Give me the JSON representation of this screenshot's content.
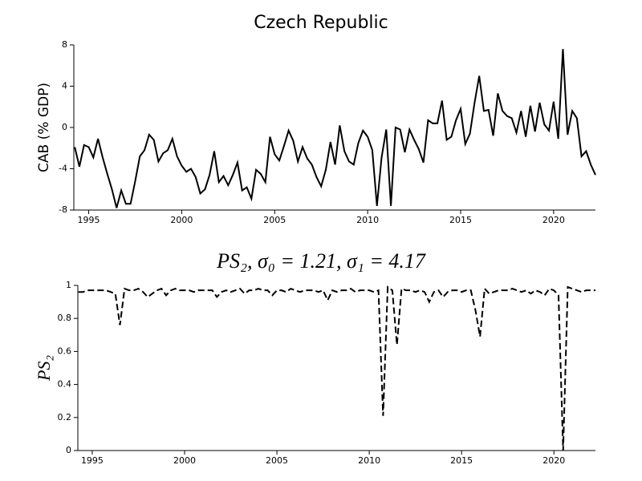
{
  "chart_data": [
    {
      "type": "line",
      "title": "Czech Republic",
      "ylabel": "CAB (% GDP)",
      "xlim": [
        1994.2,
        2022.25
      ],
      "xticks": [
        1995,
        2000,
        2005,
        2010,
        2015,
        2020
      ],
      "ylim": [
        -8,
        8
      ],
      "yticks": [
        -8,
        -4,
        0,
        4,
        8
      ],
      "line_style": "solid",
      "x": [
        1994.25,
        1994.5,
        1994.75,
        1995,
        1995.25,
        1995.5,
        1995.75,
        1996,
        1996.25,
        1996.5,
        1996.75,
        1997,
        1997.25,
        1997.5,
        1997.75,
        1998,
        1998.25,
        1998.5,
        1998.75,
        1999,
        1999.25,
        1999.5,
        1999.75,
        2000,
        2000.25,
        2000.5,
        2000.75,
        2001,
        2001.25,
        2001.5,
        2001.75,
        2002,
        2002.25,
        2002.5,
        2002.75,
        2003,
        2003.25,
        2003.5,
        2003.75,
        2004,
        2004.25,
        2004.5,
        2004.75,
        2005,
        2005.25,
        2005.5,
        2005.75,
        2006,
        2006.25,
        2006.5,
        2006.75,
        2007,
        2007.25,
        2007.5,
        2007.75,
        2008,
        2008.25,
        2008.5,
        2008.75,
        2009,
        2009.25,
        2009.5,
        2009.75,
        2010,
        2010.25,
        2010.5,
        2010.75,
        2011,
        2011.25,
        2011.5,
        2011.75,
        2012,
        2012.25,
        2012.5,
        2012.75,
        2013,
        2013.25,
        2013.5,
        2013.75,
        2014,
        2014.25,
        2014.5,
        2014.75,
        2015,
        2015.25,
        2015.5,
        2015.75,
        2016,
        2016.25,
        2016.5,
        2016.75,
        2017,
        2017.25,
        2017.5,
        2017.75,
        2018,
        2018.25,
        2018.5,
        2018.75,
        2019,
        2019.25,
        2019.5,
        2019.75,
        2020,
        2020.25,
        2020.5,
        2020.75,
        2021,
        2021.25,
        2021.5,
        2021.75,
        2022,
        2022.25
      ],
      "series": [
        {
          "color": "#000000",
          "values": [
            -1.9,
            -3.8,
            -1.7,
            -1.9,
            -2.9,
            -1.1,
            -2.9,
            -4.5,
            -6.0,
            -7.8,
            -6.1,
            -7.4,
            -7.4,
            -5.2,
            -2.8,
            -2.2,
            -0.7,
            -1.2,
            -3.3,
            -2.5,
            -2.2,
            -1.1,
            -2.8,
            -3.7,
            -4.3,
            -4.0,
            -4.8,
            -6.4,
            -6.0,
            -4.6,
            -2.3,
            -5.3,
            -4.7,
            -5.6,
            -4.6,
            -3.4,
            -6.1,
            -5.8,
            -6.9,
            -4.1,
            -4.5,
            -5.3,
            -0.9,
            -2.6,
            -3.2,
            -1.8,
            -0.3,
            -1.3,
            -3.3,
            -1.9,
            -3.0,
            -3.6,
            -4.8,
            -5.7,
            -4.1,
            -1.4,
            -3.6,
            0.2,
            -2.3,
            -3.3,
            -3.6,
            -1.5,
            -0.3,
            -0.9,
            -2.2,
            -7.6,
            -2.9,
            -0.2,
            -7.6,
            0,
            -0.2,
            -2.4,
            -0.2,
            -1.2,
            -2.1,
            -3.4,
            0.7,
            0.4,
            0.4,
            2.6,
            -1.2,
            -0.9,
            0.7,
            1.8,
            -1.6,
            -0.6,
            2.4,
            5.0,
            1.6,
            1.7,
            -0.8,
            3.3,
            1.6,
            1.1,
            0.9,
            -0.5,
            1.6,
            -0.9,
            2.1,
            -0.4,
            2.4,
            0.3,
            -0.3,
            2.5,
            -1.1,
            7.6,
            -0.7,
            1.6,
            0.9,
            -2.8,
            -2.3,
            -3.6,
            -4.6
          ]
        }
      ]
    },
    {
      "type": "line",
      "title": "PS₂, σ₀ = 1.21, σ₁ = 4.17",
      "ylabel": "PS₂",
      "xlim": [
        1994.22,
        2022.25
      ],
      "xticks": [
        1995,
        2000,
        2005,
        2010,
        2015,
        2020
      ],
      "ylim": [
        0,
        1
      ],
      "yticks": [
        0,
        0.2,
        0.4,
        0.6,
        0.8,
        1
      ],
      "line_style": "dashed",
      "x": [
        1994.25,
        1994.5,
        1994.75,
        1995,
        1995.25,
        1995.5,
        1995.75,
        1996,
        1996.25,
        1996.5,
        1996.75,
        1997,
        1997.25,
        1997.5,
        1997.75,
        1998,
        1998.25,
        1998.5,
        1998.75,
        1999,
        1999.25,
        1999.5,
        1999.75,
        2000,
        2000.25,
        2000.5,
        2000.75,
        2001,
        2001.25,
        2001.5,
        2001.75,
        2002,
        2002.25,
        2002.5,
        2002.75,
        2003,
        2003.25,
        2003.5,
        2003.75,
        2004,
        2004.25,
        2004.5,
        2004.75,
        2005,
        2005.25,
        2005.5,
        2005.75,
        2006,
        2006.25,
        2006.5,
        2006.75,
        2007,
        2007.25,
        2007.5,
        2007.75,
        2008,
        2008.25,
        2008.5,
        2008.75,
        2009,
        2009.25,
        2009.5,
        2009.75,
        2010,
        2010.25,
        2010.5,
        2010.75,
        2011,
        2011.25,
        2011.5,
        2011.75,
        2012,
        2012.25,
        2012.5,
        2012.75,
        2013,
        2013.25,
        2013.5,
        2013.75,
        2014,
        2014.25,
        2014.5,
        2014.75,
        2015,
        2015.25,
        2015.5,
        2015.75,
        2016,
        2016.25,
        2016.5,
        2016.75,
        2017,
        2017.25,
        2017.5,
        2017.75,
        2018,
        2018.25,
        2018.5,
        2018.75,
        2019,
        2019.25,
        2019.5,
        2019.75,
        2020,
        2020.25,
        2020.5,
        2020.75,
        2021,
        2021.25,
        2021.5,
        2021.75,
        2022,
        2022.25
      ],
      "series": [
        {
          "color": "#000000",
          "values": [
            0.96,
            0.96,
            0.97,
            0.97,
            0.97,
            0.97,
            0.97,
            0.96,
            0.95,
            0.76,
            0.98,
            0.97,
            0.97,
            0.98,
            0.96,
            0.93,
            0.95,
            0.97,
            0.98,
            0.94,
            0.97,
            0.98,
            0.97,
            0.97,
            0.97,
            0.96,
            0.97,
            0.97,
            0.97,
            0.97,
            0.93,
            0.96,
            0.97,
            0.96,
            0.97,
            0.98,
            0.95,
            0.97,
            0.97,
            0.98,
            0.97,
            0.97,
            0.94,
            0.97,
            0.97,
            0.96,
            0.98,
            0.97,
            0.96,
            0.97,
            0.97,
            0.97,
            0.96,
            0.97,
            0.91,
            0.97,
            0.96,
            0.97,
            0.97,
            0.98,
            0.96,
            0.97,
            0.97,
            0.97,
            0.96,
            0.97,
            0.21,
            0.99,
            0.97,
            0.64,
            0.98,
            0.97,
            0.97,
            0.96,
            0.97,
            0.96,
            0.9,
            0.96,
            0.97,
            0.93,
            0.96,
            0.97,
            0.97,
            0.96,
            0.97,
            0.97,
            0.85,
            0.69,
            0.98,
            0.95,
            0.96,
            0.97,
            0.97,
            0.97,
            0.98,
            0.97,
            0.96,
            0.97,
            0.95,
            0.97,
            0.96,
            0.94,
            0.98,
            0.97,
            0.94,
            0.0,
            0.99,
            0.98,
            0.97,
            0.96,
            0.97,
            0.97,
            0.97
          ]
        }
      ]
    }
  ]
}
